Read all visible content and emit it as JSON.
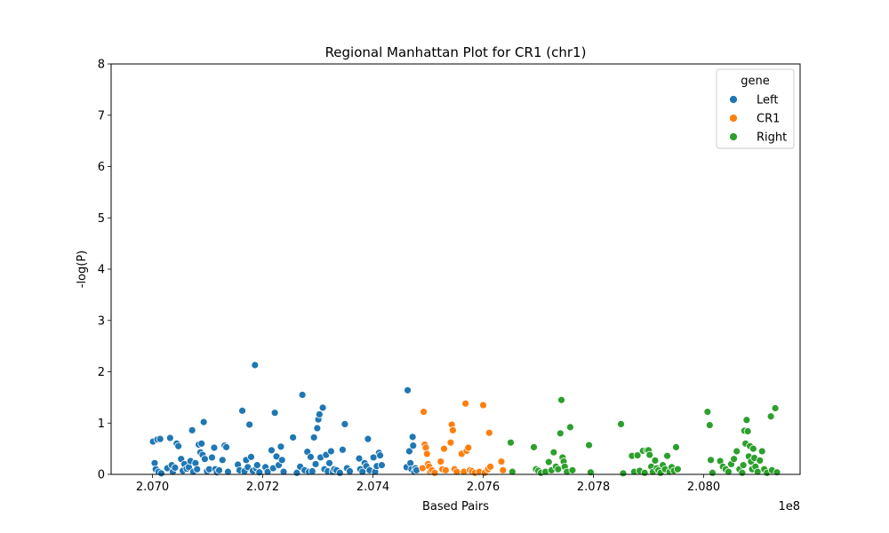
{
  "chart_data": {
    "type": "scatter",
    "title": "Regional Manhattan Plot for CR1 (chr1)",
    "xlabel": "Based Pairs",
    "ylabel": "-log(P)",
    "x_offset_label": "1e8",
    "xlim": [
      2.06925,
      2.08175
    ],
    "ylim": [
      0,
      8
    ],
    "x_ticks": [
      2.07,
      2.072,
      2.074,
      2.076,
      2.078,
      2.08
    ],
    "x_tick_labels": [
      "2.070",
      "2.072",
      "2.074",
      "2.076",
      "2.078",
      "2.080"
    ],
    "y_ticks": [
      0,
      1,
      2,
      3,
      4,
      5,
      6,
      7,
      8
    ],
    "y_tick_labels": [
      "0",
      "1",
      "2",
      "3",
      "4",
      "5",
      "6",
      "7",
      "8"
    ],
    "grid": false,
    "legend": {
      "title": "gene",
      "placement": "top-right"
    },
    "series": [
      {
        "name": "Left",
        "color": "#1f77b4",
        "points": [
          [
            2.07001,
            0.64
          ],
          [
            2.07004,
            0.22
          ],
          [
            2.07006,
            0.1
          ],
          [
            2.07009,
            0.68
          ],
          [
            2.07011,
            0.05
          ],
          [
            2.07014,
            0.69
          ],
          [
            2.07016,
            0.02
          ],
          [
            2.07027,
            0.12
          ],
          [
            2.07032,
            0.71
          ],
          [
            2.07035,
            0.18
          ],
          [
            2.07037,
            0.05
          ],
          [
            2.07041,
            0.13
          ],
          [
            2.07044,
            0.6
          ],
          [
            2.07047,
            0.55
          ],
          [
            2.07052,
            0.3
          ],
          [
            2.07055,
            0.07
          ],
          [
            2.07058,
            0.2
          ],
          [
            2.07062,
            0.11
          ],
          [
            2.07066,
            0.14
          ],
          [
            2.07069,
            0.26
          ],
          [
            2.07072,
            0.86
          ],
          [
            2.07074,
            0.05
          ],
          [
            2.07078,
            0.22
          ],
          [
            2.07081,
            0.1
          ],
          [
            2.07084,
            0.58
          ],
          [
            2.07087,
            0.43
          ],
          [
            2.07089,
            0.6
          ],
          [
            2.07091,
            0.38
          ],
          [
            2.07093,
            1.02
          ],
          [
            2.07095,
            0.3
          ],
          [
            2.07099,
            0.06
          ],
          [
            2.07103,
            0.1
          ],
          [
            2.07108,
            0.33
          ],
          [
            2.07112,
            0.52
          ],
          [
            2.07114,
            0.1
          ],
          [
            2.07117,
            0.04
          ],
          [
            2.07121,
            0.08
          ],
          [
            2.07127,
            0.28
          ],
          [
            2.07131,
            0.56
          ],
          [
            2.07134,
            0.53
          ],
          [
            2.07137,
            0.05
          ],
          [
            2.07155,
            0.19
          ],
          [
            2.07158,
            0.08
          ],
          [
            2.07163,
            1.24
          ],
          [
            2.07167,
            0.06
          ],
          [
            2.0717,
            0.28
          ],
          [
            2.07173,
            0.14
          ],
          [
            2.07176,
            0.97
          ],
          [
            2.07179,
            0.34
          ],
          [
            2.07182,
            0.07
          ],
          [
            2.07186,
            2.13
          ],
          [
            2.07188,
            0.12
          ],
          [
            2.0719,
            0.18
          ],
          [
            2.07194,
            0.04
          ],
          [
            2.07205,
            0.14
          ],
          [
            2.07209,
            0.05
          ],
          [
            2.07216,
            0.47
          ],
          [
            2.07219,
            0.12
          ],
          [
            2.07222,
            1.2
          ],
          [
            2.07225,
            0.35
          ],
          [
            2.07229,
            0.18
          ],
          [
            2.07233,
            0.54
          ],
          [
            2.07235,
            0.28
          ],
          [
            2.07238,
            0.05
          ],
          [
            2.07255,
            0.72
          ],
          [
            2.07262,
            0.03
          ],
          [
            2.07268,
            0.15
          ],
          [
            2.07272,
            1.55
          ],
          [
            2.07276,
            0.08
          ],
          [
            2.07281,
            0.44
          ],
          [
            2.07284,
            0.05
          ],
          [
            2.07287,
            0.34
          ],
          [
            2.0729,
            0.06
          ],
          [
            2.07293,
            0.72
          ],
          [
            2.07296,
            0.2
          ],
          [
            2.07299,
            0.9
          ],
          [
            2.07301,
            1.07
          ],
          [
            2.07303,
            1.17
          ],
          [
            2.07305,
            0.33
          ],
          [
            2.07309,
            1.3
          ],
          [
            2.07312,
            0.1
          ],
          [
            2.07315,
            0.38
          ],
          [
            2.07318,
            0.06
          ],
          [
            2.07321,
            0.22
          ],
          [
            2.07324,
            0.45
          ],
          [
            2.07327,
            0.05
          ],
          [
            2.0733,
            0.1
          ],
          [
            2.07334,
            0.08
          ],
          [
            2.0734,
            0.03
          ],
          [
            2.07345,
            0.48
          ],
          [
            2.07349,
            0.98
          ],
          [
            2.07353,
            0.12
          ],
          [
            2.07358,
            0.06
          ],
          [
            2.07375,
            0.31
          ],
          [
            2.07377,
            0.1
          ],
          [
            2.07381,
            0.05
          ],
          [
            2.07385,
            0.22
          ],
          [
            2.07388,
            0.16
          ],
          [
            2.07391,
            0.69
          ],
          [
            2.07394,
            0.08
          ],
          [
            2.07401,
            0.33
          ],
          [
            2.07404,
            0.05
          ],
          [
            2.07407,
            0.16
          ],
          [
            2.07411,
            0.42
          ],
          [
            2.07413,
            0.37
          ],
          [
            2.07416,
            0.18
          ],
          [
            2.07461,
            0.14
          ],
          [
            2.07463,
            1.64
          ],
          [
            2.07466,
            0.45
          ],
          [
            2.07468,
            0.22
          ],
          [
            2.0747,
            0.1
          ],
          [
            2.07472,
            0.73
          ],
          [
            2.07473,
            0.56
          ],
          [
            2.07475,
            0.05
          ],
          [
            2.07477,
            0.12
          ],
          [
            2.07479,
            0.08
          ]
        ]
      },
      {
        "name": "CR1",
        "color": "#ff7f0e",
        "points": [
          [
            2.0749,
            0.12
          ],
          [
            2.07492,
            1.22
          ],
          [
            2.07494,
            0.58
          ],
          [
            2.07496,
            0.52
          ],
          [
            2.07498,
            0.4
          ],
          [
            2.075,
            0.2
          ],
          [
            2.07502,
            0.15
          ],
          [
            2.07504,
            0.05
          ],
          [
            2.07507,
            0.08
          ],
          [
            2.07512,
            0.03
          ],
          [
            2.07523,
            0.25
          ],
          [
            2.07526,
            0.1
          ],
          [
            2.07529,
            0.5
          ],
          [
            2.07532,
            0.08
          ],
          [
            2.07541,
            0.62
          ],
          [
            2.07543,
            0.97
          ],
          [
            2.07545,
            0.86
          ],
          [
            2.07548,
            0.1
          ],
          [
            2.07552,
            0.05
          ],
          [
            2.07561,
            0.4
          ],
          [
            2.07565,
            0.05
          ],
          [
            2.07568,
            1.38
          ],
          [
            2.0757,
            0.46
          ],
          [
            2.07573,
            0.52
          ],
          [
            2.07576,
            0.08
          ],
          [
            2.0758,
            0.06
          ],
          [
            2.07585,
            0.03
          ],
          [
            2.07593,
            0.05
          ],
          [
            2.076,
            1.35
          ],
          [
            2.07603,
            0.03
          ],
          [
            2.07609,
            0.1
          ],
          [
            2.07611,
            0.81
          ],
          [
            2.07613,
            0.15
          ],
          [
            2.07633,
            0.25
          ],
          [
            2.07636,
            0.08
          ]
        ]
      },
      {
        "name": "Right",
        "color": "#2ca02c",
        "points": [
          [
            2.0765,
            0.62
          ],
          [
            2.07653,
            0.05
          ],
          [
            2.07692,
            0.53
          ],
          [
            2.07696,
            0.1
          ],
          [
            2.077,
            0.07
          ],
          [
            2.07705,
            0.03
          ],
          [
            2.07713,
            0.05
          ],
          [
            2.07719,
            0.24
          ],
          [
            2.07724,
            0.08
          ],
          [
            2.07728,
            0.43
          ],
          [
            2.07732,
            0.15
          ],
          [
            2.07736,
            0.1
          ],
          [
            2.0774,
            0.8
          ],
          [
            2.07742,
            1.45
          ],
          [
            2.07744,
            0.33
          ],
          [
            2.07746,
            0.25
          ],
          [
            2.07748,
            0.15
          ],
          [
            2.07752,
            0.05
          ],
          [
            2.07758,
            0.92
          ],
          [
            2.07762,
            0.08
          ],
          [
            2.07792,
            0.57
          ],
          [
            2.07795,
            0.04
          ],
          [
            2.0785,
            0.98
          ],
          [
            2.07854,
            0.02
          ],
          [
            2.0787,
            0.36
          ],
          [
            2.07874,
            0.05
          ],
          [
            2.0788,
            0.37
          ],
          [
            2.07884,
            0.07
          ],
          [
            2.0789,
            0.46
          ],
          [
            2.07893,
            0.03
          ],
          [
            2.07897,
            0.47
          ],
          [
            2.079,
            0.47
          ],
          [
            2.07902,
            0.38
          ],
          [
            2.07905,
            0.15
          ],
          [
            2.07908,
            0.05
          ],
          [
            2.07912,
            0.27
          ],
          [
            2.07915,
            0.12
          ],
          [
            2.07918,
            0.08
          ],
          [
            2.07922,
            0.03
          ],
          [
            2.07926,
            0.18
          ],
          [
            2.0793,
            0.1
          ],
          [
            2.07934,
            0.36
          ],
          [
            2.07938,
            0.05
          ],
          [
            2.07942,
            0.14
          ],
          [
            2.07946,
            0.07
          ],
          [
            2.0795,
            0.53
          ],
          [
            2.07953,
            0.1
          ],
          [
            2.08007,
            1.22
          ],
          [
            2.08011,
            0.96
          ],
          [
            2.08013,
            0.28
          ],
          [
            2.08016,
            0.03
          ],
          [
            2.0803,
            0.26
          ],
          [
            2.08035,
            0.15
          ],
          [
            2.0804,
            0.1
          ],
          [
            2.08045,
            0.05
          ],
          [
            2.0805,
            0.2
          ],
          [
            2.08055,
            0.3
          ],
          [
            2.0806,
            0.45
          ],
          [
            2.08065,
            0.1
          ],
          [
            2.0807,
            0.03
          ],
          [
            2.08072,
            0.18
          ],
          [
            2.08074,
            0.85
          ],
          [
            2.08076,
            0.6
          ],
          [
            2.08078,
            1.06
          ],
          [
            2.0808,
            0.84
          ],
          [
            2.08082,
            0.35
          ],
          [
            2.08084,
            0.55
          ],
          [
            2.08086,
            0.25
          ],
          [
            2.08088,
            0.1
          ],
          [
            2.0809,
            0.5
          ],
          [
            2.08092,
            0.32
          ],
          [
            2.08094,
            0.15
          ],
          [
            2.08098,
            0.05
          ],
          [
            2.08102,
            0.27
          ],
          [
            2.08106,
            0.45
          ],
          [
            2.0811,
            0.1
          ],
          [
            2.08115,
            0.03
          ],
          [
            2.08122,
            1.13
          ],
          [
            2.08124,
            0.08
          ],
          [
            2.0813,
            1.29
          ],
          [
            2.08133,
            0.04
          ]
        ]
      }
    ]
  }
}
